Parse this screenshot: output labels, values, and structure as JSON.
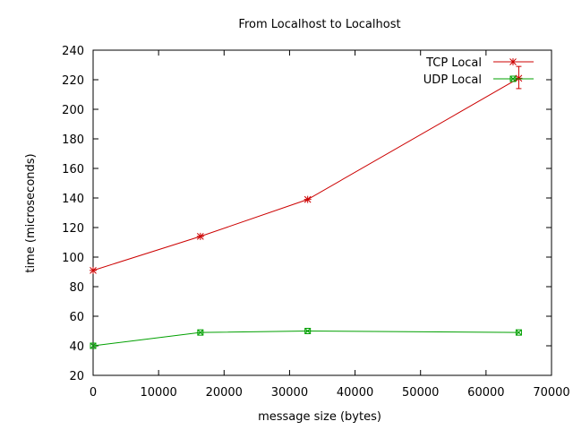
{
  "chart_data": {
    "type": "line",
    "title": "From Localhost to Localhost",
    "xlabel": "message size (bytes)",
    "ylabel": "time (microseconds)",
    "xlim": [
      0,
      70000
    ],
    "ylim": [
      20,
      240
    ],
    "xticks": [
      0,
      10000,
      20000,
      30000,
      40000,
      50000,
      60000,
      70000
    ],
    "yticks": [
      20,
      40,
      60,
      80,
      100,
      120,
      140,
      160,
      180,
      200,
      220,
      240
    ],
    "grid": false,
    "legend_position": "top-right",
    "series": [
      {
        "name": "TCP Local",
        "color": "#cc0000",
        "marker": "star",
        "x": [
          0,
          16384,
          32768,
          65000
        ],
        "y": [
          91,
          114,
          139,
          221
        ],
        "error_bars": [
          {
            "x": 65000,
            "low": 214,
            "high": 229
          }
        ]
      },
      {
        "name": "UDP Local",
        "color": "#00a000",
        "marker": "square",
        "x": [
          0,
          16384,
          32768,
          65000
        ],
        "y": [
          40,
          49,
          50,
          49
        ]
      }
    ]
  }
}
